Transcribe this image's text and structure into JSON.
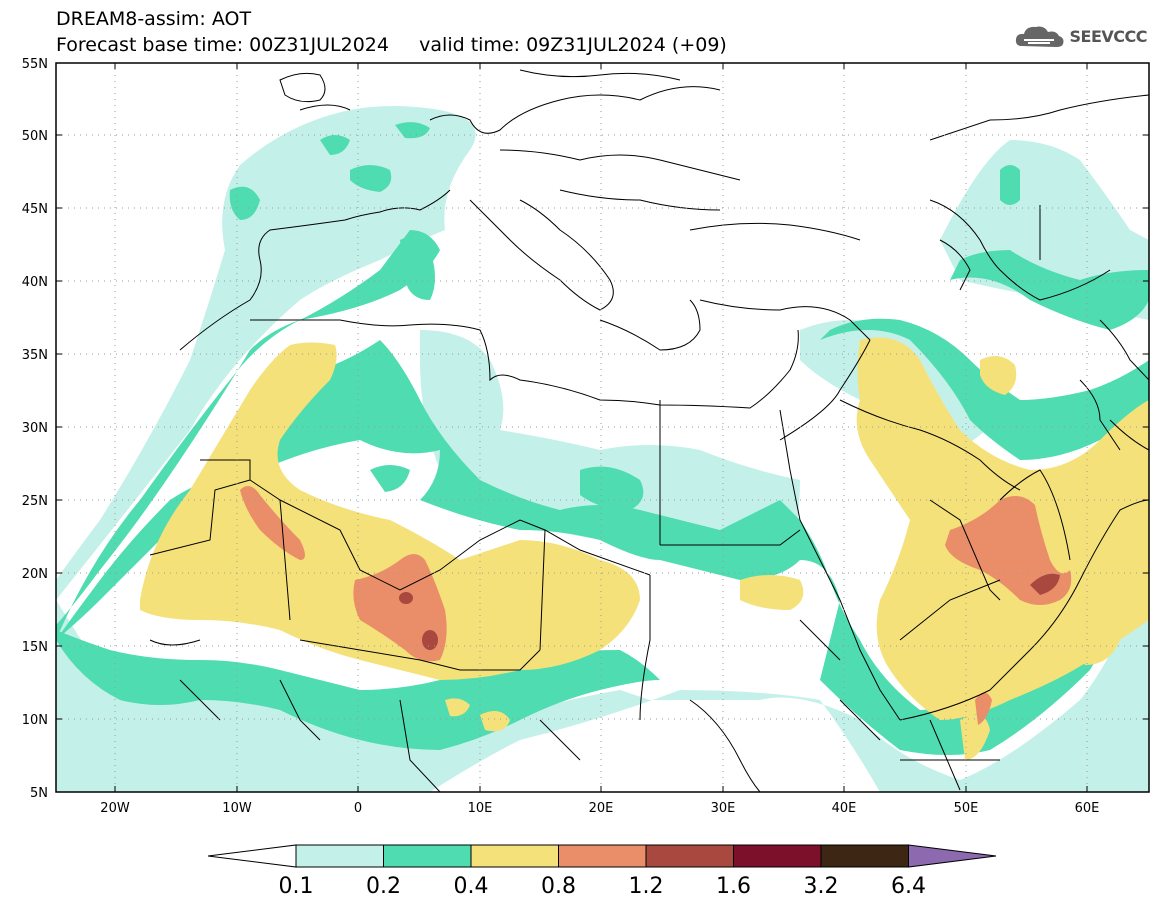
{
  "header": {
    "title_line1": "DREAM8-assim: AOT",
    "title_line2": "Forecast base time: 00Z31JUL2024     valid time: 09Z31JUL2024 (+09)"
  },
  "logo": {
    "text": "SEEVCCC",
    "icon": "cloud-icon"
  },
  "axes": {
    "lat_labels": [
      "55N",
      "50N",
      "45N",
      "40N",
      "35N",
      "30N",
      "25N",
      "20N",
      "15N",
      "10N",
      "5N"
    ],
    "lon_labels": [
      "20W",
      "10W",
      "0",
      "10E",
      "20E",
      "30E",
      "40E",
      "50E",
      "60E"
    ]
  },
  "colorbar": {
    "labels": [
      "0.1",
      "0.2",
      "0.4",
      "0.8",
      "1.2",
      "1.6",
      "3.2",
      "6.4"
    ],
    "colors": [
      "#c4f0ea",
      "#4fdcb0",
      "#f5e17a",
      "#ea8e6a",
      "#a8483e",
      "#7c0f2a",
      "#3d2614",
      "#8d6aaf"
    ]
  }
}
